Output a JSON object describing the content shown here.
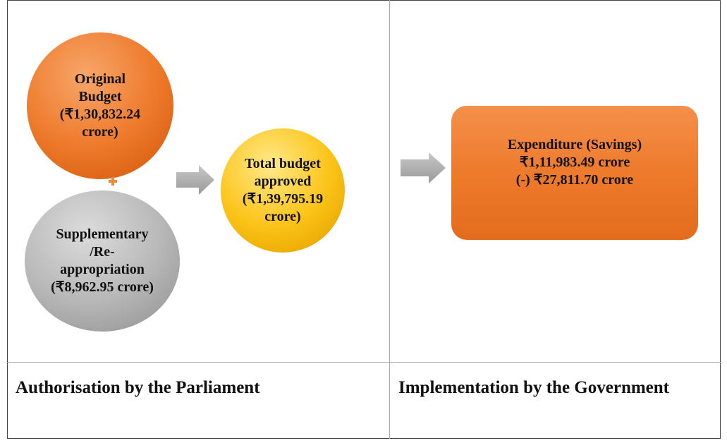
{
  "nodes": [
    {
      "lines": [
        "Original",
        "Budget",
        "(₹1,30,832.24",
        "crore)"
      ]
    },
    {
      "lines": [
        "Supplementary",
        "/Re-",
        "appropriation",
        "(₹8,962.95 crore)"
      ]
    },
    {
      "lines": [
        "Total budget",
        "approved",
        "(₹1,39,795.19",
        "crore)"
      ]
    },
    {
      "lines": [
        "Expenditure (Savings)",
        "₹1,11,983.49 crore",
        "(-) ₹27,811.70 crore"
      ]
    }
  ],
  "footer": {
    "left": "Authorisation by the Parliament",
    "right": "Implementation by the Government"
  }
}
